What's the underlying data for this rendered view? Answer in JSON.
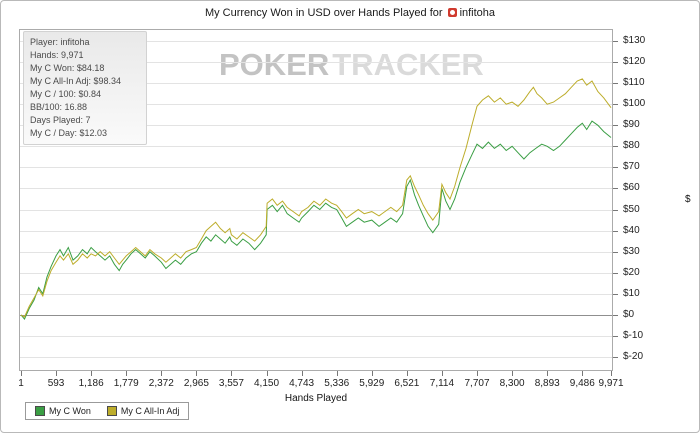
{
  "header": {
    "title_prefix": "My Currency Won in USD over Hands Played for",
    "player_name": "infitoha"
  },
  "stats_box": {
    "rows": [
      {
        "label": "Player",
        "value": "infitoha"
      },
      {
        "label": "Hands",
        "value": "9,971"
      },
      {
        "label": "My C Won",
        "value": "$84.18"
      },
      {
        "label": "My C All-In Adj",
        "value": "$98.34"
      },
      {
        "label": "My C / 100",
        "value": "$0.84"
      },
      {
        "label": "BB/100",
        "value": "16.88"
      },
      {
        "label": "Days Played",
        "value": "7"
      },
      {
        "label": "My C / Day",
        "value": "$12.03"
      }
    ]
  },
  "watermark": {
    "part1": "POKER",
    "part2": "TRACKER"
  },
  "chart_data": {
    "type": "line",
    "title": "My Currency Won in USD over Hands Played for infitoha",
    "xlabel": "Hands Played",
    "ylabel": "$",
    "xlim": [
      1,
      9971
    ],
    "ylim": [
      -20,
      130
    ],
    "grid": "horizontal",
    "legend_position": "bottom-left",
    "x_ticks": [
      {
        "value": 1,
        "label": "1"
      },
      {
        "value": 593,
        "label": "593"
      },
      {
        "value": 1186,
        "label": "1,186"
      },
      {
        "value": 1779,
        "label": "1,779"
      },
      {
        "value": 2372,
        "label": "2,372"
      },
      {
        "value": 2965,
        "label": "2,965"
      },
      {
        "value": 3557,
        "label": "3,557"
      },
      {
        "value": 4150,
        "label": "4,150"
      },
      {
        "value": 4743,
        "label": "4,743"
      },
      {
        "value": 5336,
        "label": "5,336"
      },
      {
        "value": 5929,
        "label": "5,929"
      },
      {
        "value": 6521,
        "label": "6,521"
      },
      {
        "value": 7114,
        "label": "7,114"
      },
      {
        "value": 7707,
        "label": "7,707"
      },
      {
        "value": 8300,
        "label": "8,300"
      },
      {
        "value": 8893,
        "label": "8,893"
      },
      {
        "value": 9486,
        "label": "9,486"
      },
      {
        "value": 9971,
        "label": "9,971"
      }
    ],
    "y_ticks": [
      {
        "value": 130,
        "label": "$130"
      },
      {
        "value": 120,
        "label": "$120"
      },
      {
        "value": 110,
        "label": "$110"
      },
      {
        "value": 100,
        "label": "$100"
      },
      {
        "value": 90,
        "label": "$90"
      },
      {
        "value": 80,
        "label": "$80"
      },
      {
        "value": 70,
        "label": "$70"
      },
      {
        "value": 60,
        "label": "$60"
      },
      {
        "value": 50,
        "label": "$50"
      },
      {
        "value": 40,
        "label": "$40"
      },
      {
        "value": 30,
        "label": "$30"
      },
      {
        "value": 20,
        "label": "$20"
      },
      {
        "value": 10,
        "label": "$10"
      },
      {
        "value": 0,
        "label": "$0"
      },
      {
        "value": -10,
        "label": "$-10"
      },
      {
        "value": -20,
        "label": "$-20"
      }
    ],
    "series": [
      {
        "name": "My C Won",
        "color": "#3a9e44",
        "final_value": 84.18,
        "points": [
          [
            1,
            0
          ],
          [
            60,
            -2
          ],
          [
            140,
            3
          ],
          [
            220,
            7
          ],
          [
            300,
            13
          ],
          [
            370,
            10
          ],
          [
            440,
            18
          ],
          [
            510,
            23
          ],
          [
            593,
            28
          ],
          [
            660,
            31
          ],
          [
            720,
            28
          ],
          [
            800,
            32
          ],
          [
            880,
            26
          ],
          [
            960,
            28
          ],
          [
            1040,
            31
          ],
          [
            1120,
            29
          ],
          [
            1186,
            32
          ],
          [
            1260,
            30
          ],
          [
            1340,
            28
          ],
          [
            1420,
            26
          ],
          [
            1500,
            28
          ],
          [
            1580,
            24
          ],
          [
            1660,
            21
          ],
          [
            1720,
            24
          ],
          [
            1779,
            26
          ],
          [
            1860,
            29
          ],
          [
            1940,
            31
          ],
          [
            2020,
            29
          ],
          [
            2100,
            27
          ],
          [
            2180,
            30
          ],
          [
            2260,
            28
          ],
          [
            2372,
            25
          ],
          [
            2450,
            22
          ],
          [
            2530,
            24
          ],
          [
            2610,
            26
          ],
          [
            2700,
            24
          ],
          [
            2790,
            27
          ],
          [
            2880,
            29
          ],
          [
            2965,
            30
          ],
          [
            3050,
            34
          ],
          [
            3130,
            37
          ],
          [
            3210,
            35
          ],
          [
            3290,
            38
          ],
          [
            3370,
            36
          ],
          [
            3450,
            34
          ],
          [
            3530,
            37
          ],
          [
            3557,
            35
          ],
          [
            3650,
            33
          ],
          [
            3750,
            36
          ],
          [
            3850,
            34
          ],
          [
            3950,
            31
          ],
          [
            4050,
            34
          ],
          [
            4145,
            38
          ],
          [
            4160,
            50
          ],
          [
            4250,
            52
          ],
          [
            4330,
            49
          ],
          [
            4420,
            52
          ],
          [
            4500,
            48
          ],
          [
            4600,
            46
          ],
          [
            4700,
            44
          ],
          [
            4743,
            46
          ],
          [
            4850,
            49
          ],
          [
            4950,
            52
          ],
          [
            5050,
            50
          ],
          [
            5150,
            53
          ],
          [
            5250,
            51
          ],
          [
            5336,
            50
          ],
          [
            5420,
            46
          ],
          [
            5500,
            42
          ],
          [
            5600,
            44
          ],
          [
            5700,
            46
          ],
          [
            5800,
            44
          ],
          [
            5929,
            45
          ],
          [
            6050,
            42
          ],
          [
            6150,
            44
          ],
          [
            6250,
            46
          ],
          [
            6350,
            44
          ],
          [
            6450,
            48
          ],
          [
            6521,
            61
          ],
          [
            6580,
            64
          ],
          [
            6650,
            57
          ],
          [
            6720,
            52
          ],
          [
            6800,
            47
          ],
          [
            6880,
            42
          ],
          [
            6960,
            39
          ],
          [
            7060,
            43
          ],
          [
            7114,
            60
          ],
          [
            7180,
            54
          ],
          [
            7250,
            50
          ],
          [
            7330,
            55
          ],
          [
            7420,
            63
          ],
          [
            7520,
            70
          ],
          [
            7620,
            76
          ],
          [
            7707,
            81
          ],
          [
            7800,
            79
          ],
          [
            7900,
            82
          ],
          [
            8000,
            79
          ],
          [
            8100,
            81
          ],
          [
            8200,
            78
          ],
          [
            8300,
            80
          ],
          [
            8400,
            77
          ],
          [
            8500,
            74
          ],
          [
            8600,
            77
          ],
          [
            8700,
            79
          ],
          [
            8800,
            81
          ],
          [
            8893,
            80
          ],
          [
            9000,
            78
          ],
          [
            9100,
            80
          ],
          [
            9200,
            83
          ],
          [
            9300,
            86
          ],
          [
            9400,
            89
          ],
          [
            9486,
            91
          ],
          [
            9560,
            88
          ],
          [
            9650,
            92
          ],
          [
            9750,
            90
          ],
          [
            9850,
            87
          ],
          [
            9971,
            84.18
          ]
        ]
      },
      {
        "name": "My C All-In Adj",
        "color": "#bdad2b",
        "final_value": 98.34,
        "points": [
          [
            1,
            0
          ],
          [
            60,
            -1
          ],
          [
            140,
            4
          ],
          [
            220,
            8
          ],
          [
            300,
            12
          ],
          [
            370,
            9
          ],
          [
            440,
            16
          ],
          [
            510,
            21
          ],
          [
            593,
            25
          ],
          [
            660,
            28
          ],
          [
            720,
            26
          ],
          [
            800,
            29
          ],
          [
            880,
            24
          ],
          [
            960,
            26
          ],
          [
            1040,
            29
          ],
          [
            1120,
            27
          ],
          [
            1186,
            29
          ],
          [
            1260,
            28
          ],
          [
            1340,
            30
          ],
          [
            1420,
            28
          ],
          [
            1500,
            30
          ],
          [
            1580,
            27
          ],
          [
            1660,
            24
          ],
          [
            1720,
            26
          ],
          [
            1779,
            28
          ],
          [
            1860,
            30
          ],
          [
            1940,
            32
          ],
          [
            2020,
            30
          ],
          [
            2100,
            28
          ],
          [
            2180,
            31
          ],
          [
            2260,
            29
          ],
          [
            2372,
            27
          ],
          [
            2450,
            25
          ],
          [
            2530,
            27
          ],
          [
            2610,
            29
          ],
          [
            2700,
            27
          ],
          [
            2790,
            30
          ],
          [
            2880,
            31
          ],
          [
            2965,
            32
          ],
          [
            3050,
            36
          ],
          [
            3130,
            40
          ],
          [
            3210,
            42
          ],
          [
            3290,
            44
          ],
          [
            3370,
            41
          ],
          [
            3450,
            39
          ],
          [
            3530,
            41
          ],
          [
            3557,
            38
          ],
          [
            3650,
            36
          ],
          [
            3750,
            39
          ],
          [
            3850,
            37
          ],
          [
            3950,
            35
          ],
          [
            4050,
            38
          ],
          [
            4145,
            42
          ],
          [
            4160,
            53
          ],
          [
            4250,
            55
          ],
          [
            4330,
            52
          ],
          [
            4420,
            54
          ],
          [
            4500,
            51
          ],
          [
            4600,
            49
          ],
          [
            4700,
            47
          ],
          [
            4743,
            49
          ],
          [
            4850,
            51
          ],
          [
            4950,
            54
          ],
          [
            5050,
            52
          ],
          [
            5150,
            55
          ],
          [
            5250,
            53
          ],
          [
            5336,
            52
          ],
          [
            5420,
            49
          ],
          [
            5500,
            46
          ],
          [
            5600,
            48
          ],
          [
            5700,
            50
          ],
          [
            5800,
            48
          ],
          [
            5929,
            49
          ],
          [
            6050,
            47
          ],
          [
            6150,
            49
          ],
          [
            6250,
            51
          ],
          [
            6350,
            49
          ],
          [
            6450,
            52
          ],
          [
            6521,
            64
          ],
          [
            6580,
            66
          ],
          [
            6650,
            61
          ],
          [
            6720,
            57
          ],
          [
            6800,
            52
          ],
          [
            6880,
            48
          ],
          [
            6960,
            45
          ],
          [
            7060,
            49
          ],
          [
            7114,
            62
          ],
          [
            7180,
            58
          ],
          [
            7250,
            55
          ],
          [
            7330,
            61
          ],
          [
            7420,
            70
          ],
          [
            7520,
            79
          ],
          [
            7620,
            90
          ],
          [
            7707,
            99
          ],
          [
            7800,
            102
          ],
          [
            7900,
            104
          ],
          [
            8000,
            101
          ],
          [
            8100,
            103
          ],
          [
            8200,
            100
          ],
          [
            8300,
            101
          ],
          [
            8400,
            99
          ],
          [
            8500,
            102
          ],
          [
            8600,
            106
          ],
          [
            8660,
            108
          ],
          [
            8720,
            105
          ],
          [
            8800,
            103
          ],
          [
            8893,
            100
          ],
          [
            9000,
            101
          ],
          [
            9100,
            103
          ],
          [
            9200,
            105
          ],
          [
            9300,
            108
          ],
          [
            9400,
            111
          ],
          [
            9486,
            112
          ],
          [
            9560,
            109
          ],
          [
            9650,
            111
          ],
          [
            9750,
            106
          ],
          [
            9850,
            103
          ],
          [
            9971,
            98.34
          ]
        ]
      }
    ]
  }
}
